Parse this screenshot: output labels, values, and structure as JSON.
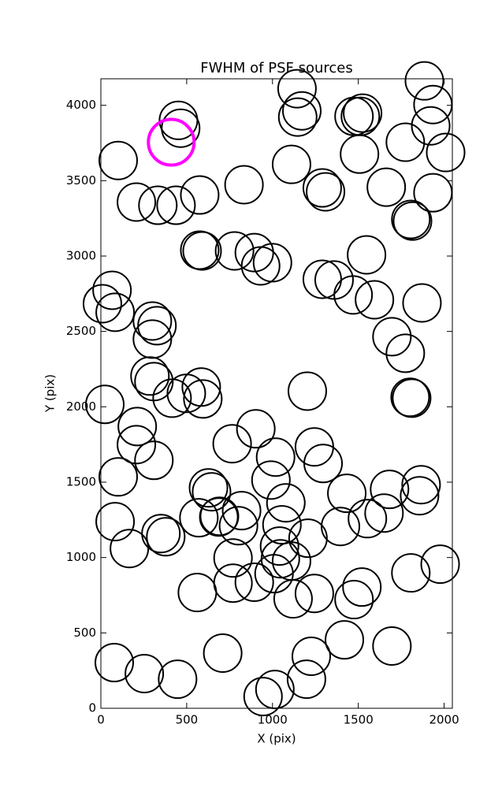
{
  "chart_data": {
    "type": "scatter",
    "title": "FWHM of PSF sources",
    "x_label": "X (pix)",
    "y_label": "Y (pix)",
    "xlim": [
      0,
      2048
    ],
    "ylim": [
      0,
      4176
    ],
    "xticks": [
      0,
      500,
      1000,
      1500,
      2000
    ],
    "yticks": [
      0,
      500,
      1000,
      1500,
      2000,
      2500,
      3000,
      3500,
      4000
    ],
    "series": [
      {
        "color": "#000000",
        "marker": "open-circle",
        "x": [
          101,
          452,
          465,
          207,
          332,
          438,
          576,
          834,
          1111,
          1143,
          1171,
          1147,
          1290,
          1309,
          1475,
          1512,
          1525,
          1507,
          1663,
          1774,
          1806,
          1816,
          1885,
          1935,
          1922,
          1935,
          2009,
          576,
          590,
          779,
          894,
          931,
          1000,
          1290,
          1359,
          1470,
          1548,
          1594,
          1871,
          1696,
          1774,
          1802,
          1811,
          1203,
          65,
          83,
          9,
          300,
          327,
          300,
          286,
          309,
          415,
          498,
          585,
          594,
          23,
          212,
          207,
          309,
          101,
          765,
          903,
          1018,
          991,
          1244,
          1295,
          1433,
          1682,
          1650,
          1866,
          1857,
          627,
          645,
          820,
          691,
          687,
          802,
          1078,
          1055,
          571,
          83,
          350,
          378,
          166,
          1041,
          1207,
          1396,
          1553,
          770,
          1046,
          1111,
          1009,
          894,
          770,
          562,
          1120,
          1244,
          1475,
          1521,
          1806,
          1977,
          78,
          253,
          447,
          710,
          1226,
          1198,
          1014,
          945,
          1419,
          1696
        ],
        "y": [
          3634,
          3900,
          3848,
          3358,
          3337,
          3337,
          3405,
          3473,
          3608,
          4110,
          3963,
          3922,
          3452,
          3426,
          3927,
          3927,
          3948,
          3676,
          3457,
          3755,
          3243,
          3232,
          4162,
          4005,
          3864,
          3420,
          3687,
          3039,
          3034,
          3034,
          3023,
          2935,
          2956,
          2846,
          2841,
          2742,
          3008,
          2710,
          2689,
          2465,
          2355,
          2063,
          2057,
          2104,
          2773,
          2627,
          2684,
          2569,
          2538,
          2449,
          2204,
          2167,
          2057,
          2089,
          2131,
          2052,
          2016,
          1869,
          1749,
          1645,
          1535,
          1755,
          1854,
          1666,
          1514,
          1734,
          1624,
          1426,
          1452,
          1295,
          1483,
          1410,
          1462,
          1436,
          1311,
          1274,
          1269,
          1211,
          1363,
          1217,
          1264,
          1238,
          1159,
          1138,
          1060,
          1076,
          1128,
          1206,
          1258,
          997,
          992,
          977,
          893,
          836,
          830,
          768,
          726,
          762,
          721,
          804,
          898,
          956,
          303,
          230,
          193,
          366,
          345,
          193,
          125,
          78,
          454,
          413
        ]
      },
      {
        "color": "#ff00ff",
        "marker": "open-circle",
        "x": [
          410
        ],
        "y": [
          3755
        ]
      }
    ]
  }
}
